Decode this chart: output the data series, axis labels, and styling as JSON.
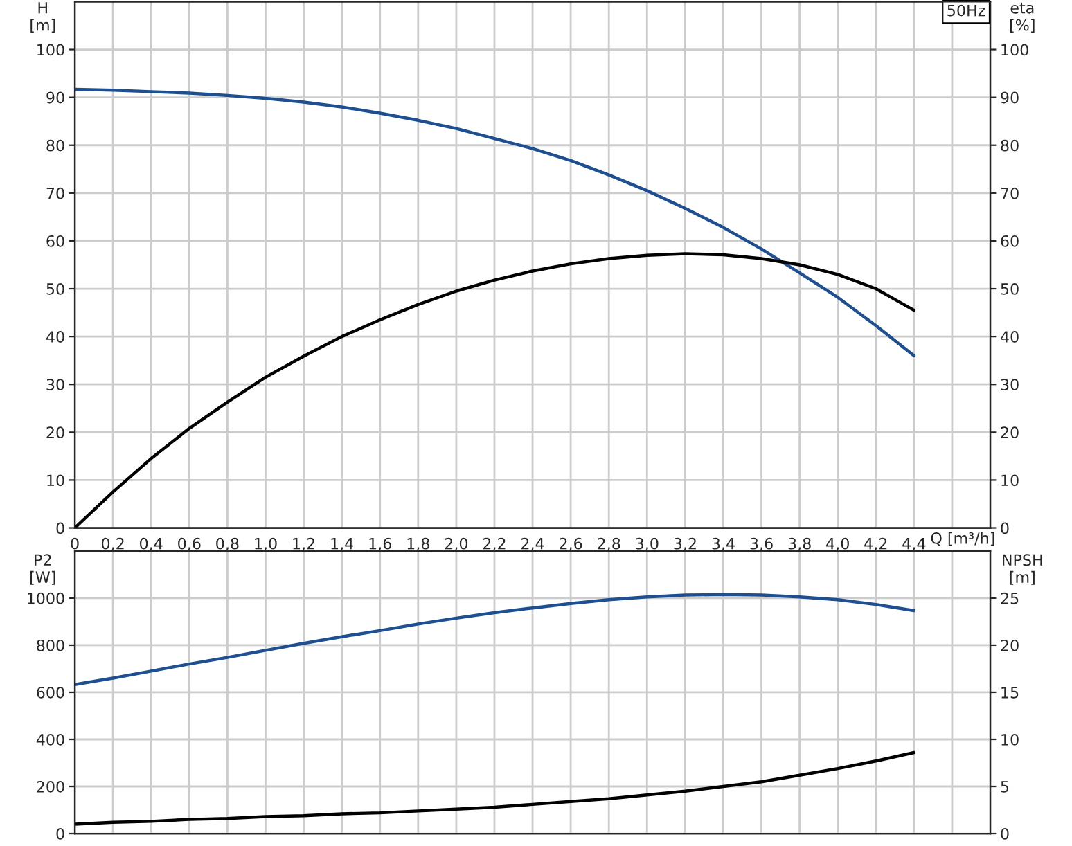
{
  "chart_data": [
    {
      "type": "line",
      "ylabel": "H\n[m]",
      "y2label": "eta\n[%]",
      "xlabel": "Q [m³/h]",
      "annotations": [
        "50Hz"
      ],
      "x": [
        0,
        0.2,
        0.4,
        0.6,
        0.8,
        1.0,
        1.2,
        1.4,
        1.6,
        1.8,
        2.0,
        2.2,
        2.4,
        2.6,
        2.8,
        3.0,
        3.2,
        3.4,
        3.6,
        3.8,
        4.0,
        4.2,
        4.4
      ],
      "series": [
        {
          "color": "#1d4f91",
          "values": [
            91.7,
            91.5,
            91.2,
            90.9,
            90.4,
            89.8,
            89.0,
            88.0,
            86.7,
            85.2,
            83.5,
            81.4,
            79.3,
            76.8,
            73.8,
            70.5,
            66.8,
            62.8,
            58.3,
            53.3,
            48.2,
            42.3,
            36.0
          ]
        },
        {
          "color": "#000000",
          "axis": "y2",
          "values": [
            0,
            7.5,
            14.5,
            20.8,
            26.3,
            31.5,
            35.9,
            40.0,
            43.5,
            46.7,
            49.5,
            51.8,
            53.7,
            55.2,
            56.3,
            57.0,
            57.3,
            57.1,
            56.3,
            55.0,
            53.0,
            50.0,
            45.5
          ]
        }
      ],
      "xlim": [
        0,
        4.8
      ],
      "xticks": [
        0,
        {
          "value": 0.2,
          "label": "0,2"
        },
        {
          "value": 0.4,
          "label": "0,4"
        },
        {
          "value": 0.6,
          "label": "0,6"
        },
        {
          "value": 0.8,
          "label": "0,8"
        },
        {
          "value": 1.0,
          "label": "1,0"
        },
        {
          "value": 1.2,
          "label": "1,2"
        },
        {
          "value": 1.4,
          "label": "1,4"
        },
        {
          "value": 1.6,
          "label": "1,6"
        },
        {
          "value": 1.8,
          "label": "1,8"
        },
        {
          "value": 2.0,
          "label": "2,0"
        },
        {
          "value": 2.2,
          "label": "2,2"
        },
        {
          "value": 2.4,
          "label": "2,4"
        },
        {
          "value": 2.6,
          "label": "2,6"
        },
        {
          "value": 2.8,
          "label": "2,8"
        },
        {
          "value": 3.0,
          "label": "3,0"
        },
        {
          "value": 3.2,
          "label": "3,2"
        },
        {
          "value": 3.4,
          "label": "3,4"
        },
        {
          "value": 3.6,
          "label": "3,6"
        },
        {
          "value": 3.8,
          "label": "3,8"
        },
        {
          "value": 4.0,
          "label": "4,0"
        },
        {
          "value": 4.2,
          "label": "4,2"
        },
        {
          "value": 4.4,
          "label": "4,4"
        },
        {
          "value": 4.6,
          "label": null
        },
        {
          "value": 4.8,
          "label": null
        }
      ],
      "ylim": [
        0,
        110
      ],
      "yticks": [
        0,
        10,
        20,
        30,
        40,
        50,
        60,
        70,
        80,
        90,
        100
      ],
      "y2lim": [
        0,
        110
      ],
      "y2ticks": [
        0,
        10,
        20,
        30,
        40,
        50,
        60,
        70,
        80,
        90,
        100
      ],
      "grid": true
    },
    {
      "type": "line",
      "ylabel": "P2\n[W]",
      "y2label": "NPSH\n[m]",
      "x": [
        0,
        0.2,
        0.4,
        0.6,
        0.8,
        1.0,
        1.2,
        1.4,
        1.6,
        1.8,
        2.0,
        2.2,
        2.4,
        2.6,
        2.8,
        3.0,
        3.2,
        3.4,
        3.6,
        3.8,
        4.0,
        4.2,
        4.4
      ],
      "series": [
        {
          "color": "#1d4f91",
          "values": [
            633,
            660,
            690,
            720,
            748,
            778,
            808,
            836,
            862,
            890,
            915,
            938,
            958,
            977,
            993,
            1005,
            1013,
            1015,
            1013,
            1005,
            993,
            973,
            947
          ]
        },
        {
          "color": "#000000",
          "axis": "y2",
          "values": [
            1.0,
            1.2,
            1.3,
            1.5,
            1.6,
            1.8,
            1.9,
            2.1,
            2.2,
            2.4,
            2.6,
            2.8,
            3.1,
            3.4,
            3.7,
            4.1,
            4.5,
            5.0,
            5.5,
            6.2,
            6.9,
            7.7,
            8.6
          ]
        }
      ],
      "xlim": [
        0,
        4.8
      ],
      "xticks": [
        0,
        0.2,
        0.4,
        0.6,
        0.8,
        1.0,
        1.2,
        1.4,
        1.6,
        1.8,
        2.0,
        2.2,
        2.4,
        2.6,
        2.8,
        3.0,
        3.2,
        3.4,
        3.6,
        3.8,
        4.0,
        4.2,
        4.4,
        4.6,
        4.8
      ],
      "ylim": [
        0,
        1200
      ],
      "yticks": [
        0,
        200,
        400,
        600,
        800,
        1000
      ],
      "y2lim": [
        0,
        30
      ],
      "y2ticks": [
        0,
        5,
        10,
        15,
        20,
        25
      ],
      "tick_labels": "y",
      "grid": true
    }
  ]
}
